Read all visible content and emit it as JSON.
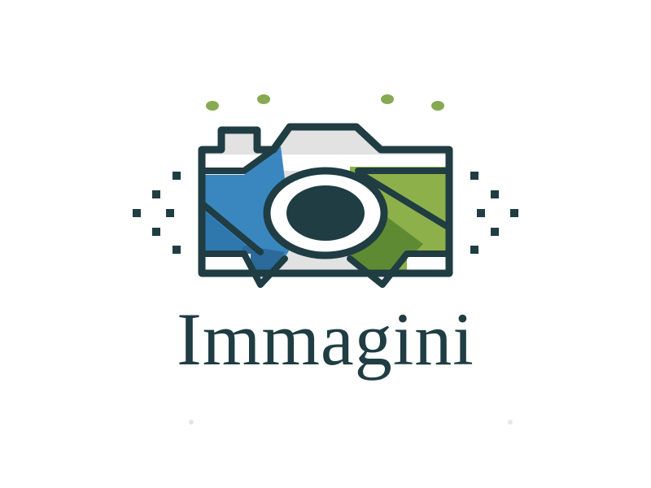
{
  "brand": {
    "name": "Immagini"
  },
  "colors": {
    "dark": "#1f3d42",
    "blue": "#3a87c0",
    "blue_dark": "#2b6a9a",
    "green": "#8db04a",
    "green_dark": "#5f8a34",
    "grey_light": "#e2e2e2",
    "white": "#ffffff",
    "dot_green": "#86aa52"
  },
  "icons": {
    "main": "camera-icon",
    "accents": "sparkle-dots"
  }
}
